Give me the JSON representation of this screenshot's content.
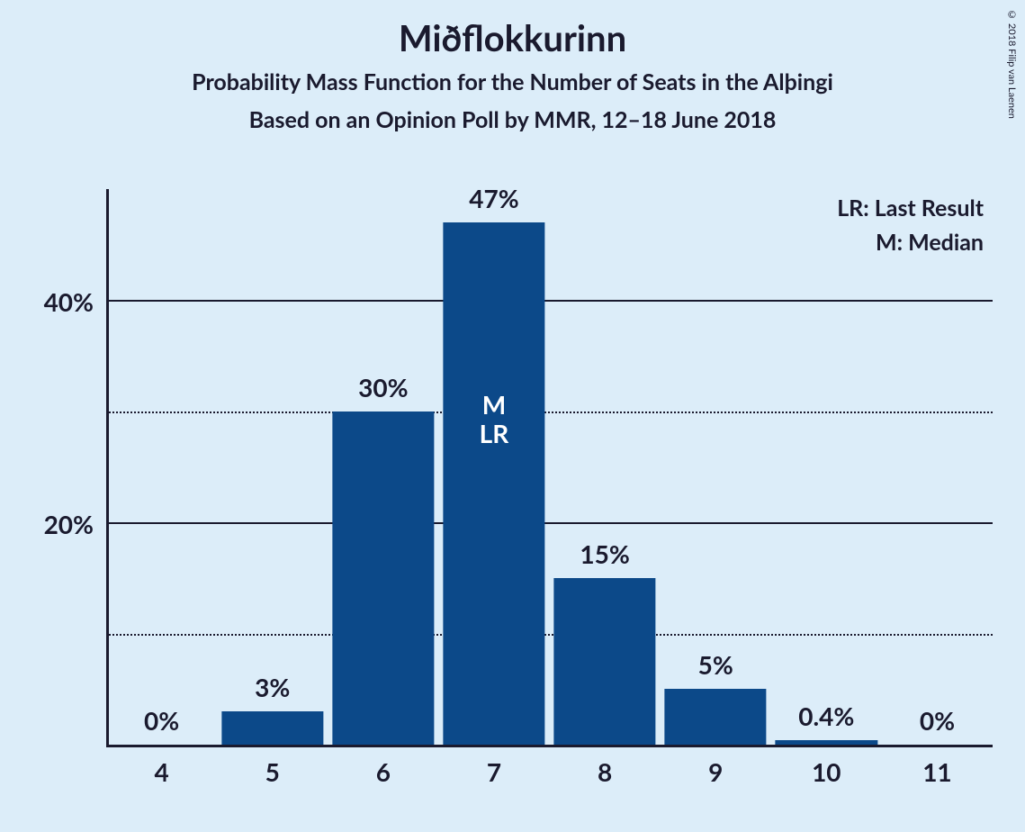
{
  "title": "Miðflokkurinn",
  "subtitle1": "Probability Mass Function for the Number of Seats in the Alþingi",
  "subtitle2": "Based on an Opinion Poll by MMR, 12–18 June 2018",
  "copyright": "© 2018 Filip van Laenen",
  "legend": {
    "lr": "LR: Last Result",
    "m": "M: Median"
  },
  "chart": {
    "type": "bar",
    "categories": [
      "4",
      "5",
      "6",
      "7",
      "8",
      "9",
      "10",
      "11"
    ],
    "values": [
      0,
      3,
      30,
      47,
      15,
      5,
      0.4,
      0
    ],
    "value_labels": [
      "0%",
      "3%",
      "30%",
      "47%",
      "15%",
      "5%",
      "0.4%",
      "0%"
    ],
    "bar_color": "#0c4989",
    "background_color": "#dcedf9",
    "ymax": 50,
    "major_ticks": [
      20,
      40
    ],
    "minor_ticks": [
      10,
      30
    ],
    "ytick_labels": {
      "20": "20%",
      "40": "40%"
    },
    "bar_width_ratio": 0.92,
    "axis_color": "#1a1a2e",
    "title_fontsize": 40,
    "subtitle_fontsize": 25,
    "label_fontsize": 28,
    "median_index": 3,
    "last_result_index": 3,
    "annotation_M": "M",
    "annotation_LR": "LR",
    "annotation_top_pct": 32
  }
}
